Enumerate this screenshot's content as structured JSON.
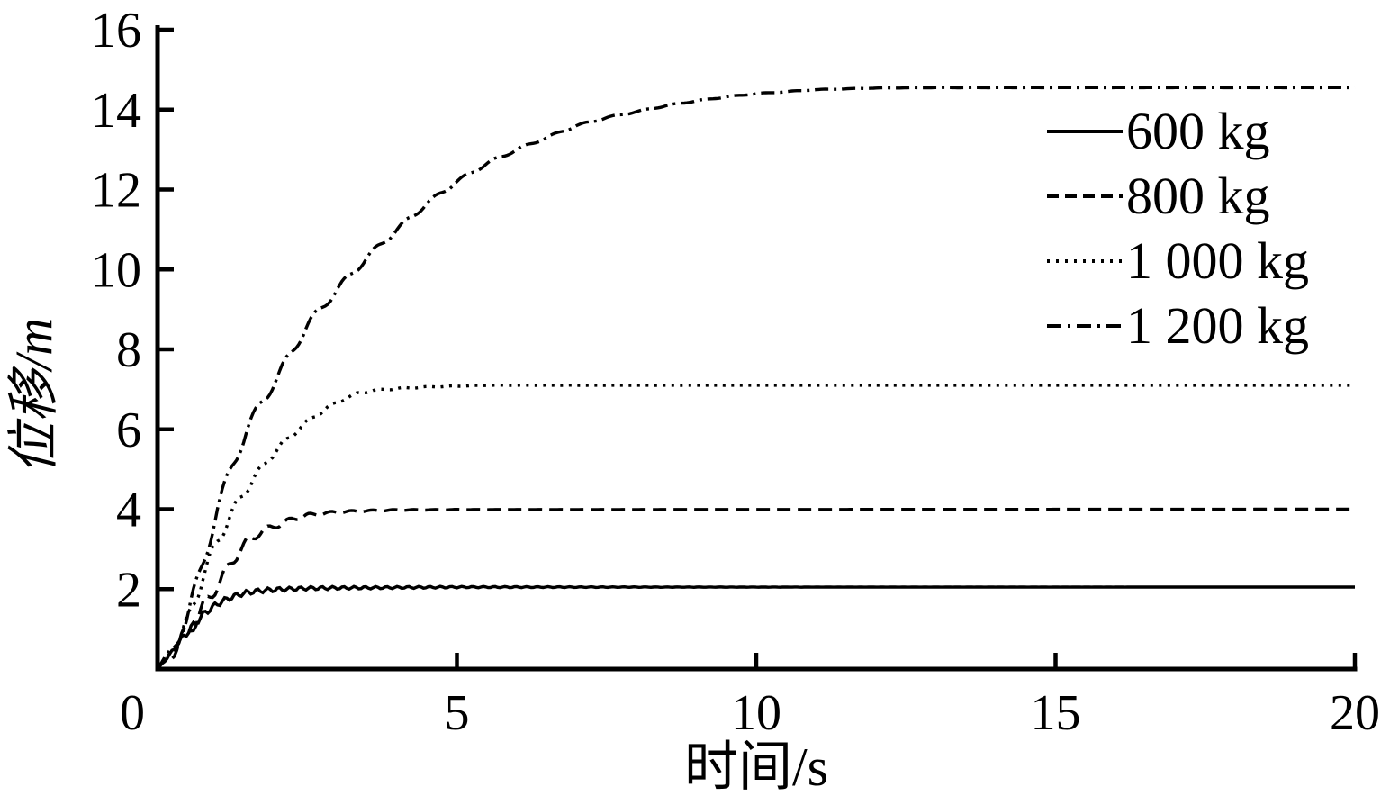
{
  "figure": {
    "background": "#ffffff",
    "ink_color": "#000000"
  },
  "chart_data": {
    "type": "line",
    "title": "",
    "xlabel": "时间/s",
    "ylabel": "位移/m",
    "xlim": [
      0,
      20
    ],
    "ylim": [
      0,
      16
    ],
    "x_ticks": [
      0,
      5,
      10,
      15,
      20
    ],
    "y_ticks": [
      2,
      4,
      6,
      8,
      10,
      12,
      14,
      16
    ],
    "grid": false,
    "legend_position": "upper-right",
    "series": [
      {
        "name": "600 kg",
        "style": "solid",
        "color": "#000000",
        "plateau": 2.05,
        "points": [
          [
            0,
            0
          ],
          [
            0.2,
            0.35
          ],
          [
            0.4,
            0.75
          ],
          [
            0.6,
            1.1
          ],
          [
            0.8,
            1.42
          ],
          [
            1,
            1.63
          ],
          [
            1.2,
            1.78
          ],
          [
            1.4,
            1.88
          ],
          [
            1.6,
            1.94
          ],
          [
            1.8,
            1.97
          ],
          [
            2,
            1.99
          ],
          [
            2.5,
            2.02
          ],
          [
            3,
            2.03
          ],
          [
            4,
            2.04
          ],
          [
            5,
            2.05
          ],
          [
            20,
            2.05
          ]
        ],
        "ripple": {
          "amplitude": 0.1,
          "period": 0.18,
          "decay": 3.0
        }
      },
      {
        "name": "800 kg",
        "style": "dashed",
        "color": "#000000",
        "plateau": 4.0,
        "points": [
          [
            0,
            0
          ],
          [
            0.25,
            0.4
          ],
          [
            0.5,
            0.95
          ],
          [
            0.75,
            1.5
          ],
          [
            1,
            2.1
          ],
          [
            1.25,
            2.7
          ],
          [
            1.5,
            3.2
          ],
          [
            1.75,
            3.45
          ],
          [
            2,
            3.6
          ],
          [
            2.25,
            3.75
          ],
          [
            2.5,
            3.85
          ],
          [
            3,
            3.93
          ],
          [
            3.5,
            3.96
          ],
          [
            4,
            3.98
          ],
          [
            5,
            3.99
          ],
          [
            20,
            4.0
          ]
        ],
        "ripple": {
          "amplitude": 0.35,
          "period": 0.35,
          "decay": 1.2
        }
      },
      {
        "name": "1 000 kg",
        "style": "dotted",
        "color": "#000000",
        "plateau": 7.1,
        "points": [
          [
            0,
            0
          ],
          [
            0.25,
            0.45
          ],
          [
            0.5,
            1.15
          ],
          [
            0.75,
            2.3
          ],
          [
            1,
            3.2
          ],
          [
            1.35,
            4.2
          ],
          [
            1.6,
            4.75
          ],
          [
            1.85,
            5.25
          ],
          [
            2.1,
            5.65
          ],
          [
            2.35,
            6.0
          ],
          [
            2.6,
            6.3
          ],
          [
            2.85,
            6.55
          ],
          [
            3.1,
            6.75
          ],
          [
            3.35,
            6.9
          ],
          [
            3.6,
            6.97
          ],
          [
            4,
            7.02
          ],
          [
            4.5,
            7.06
          ],
          [
            5,
            7.08
          ],
          [
            5.5,
            7.1
          ],
          [
            20,
            7.1
          ]
        ],
        "ripple": {
          "amplitude": 0.3,
          "period": 0.4,
          "decay": 1.4
        }
      },
      {
        "name": "1 200 kg",
        "style": "dashdot",
        "color": "#000000",
        "plateau": 14.55,
        "points": [
          [
            0,
            0
          ],
          [
            0.25,
            0.5
          ],
          [
            0.5,
            1.3
          ],
          [
            0.75,
            2.6
          ],
          [
            1,
            4.0
          ],
          [
            1.25,
            5.1
          ],
          [
            1.5,
            6.0
          ],
          [
            1.75,
            6.7
          ],
          [
            2,
            7.3
          ],
          [
            2.25,
            7.95
          ],
          [
            2.5,
            8.6
          ],
          [
            2.75,
            9.05
          ],
          [
            3,
            9.5
          ],
          [
            3.5,
            10.3
          ],
          [
            4,
            11.0
          ],
          [
            4.5,
            11.65
          ],
          [
            5,
            12.2
          ],
          [
            5.5,
            12.65
          ],
          [
            6,
            13.0
          ],
          [
            6.5,
            13.3
          ],
          [
            7,
            13.6
          ],
          [
            7.5,
            13.8
          ],
          [
            8,
            13.95
          ],
          [
            8.5,
            14.1
          ],
          [
            9,
            14.22
          ],
          [
            9.5,
            14.32
          ],
          [
            10,
            14.4
          ],
          [
            10.5,
            14.45
          ],
          [
            11,
            14.5
          ],
          [
            11.5,
            14.52
          ],
          [
            12,
            14.54
          ],
          [
            13,
            14.55
          ],
          [
            20,
            14.55
          ]
        ],
        "ripple": {
          "amplitude": 0.25,
          "period": 0.5,
          "decay": 3.0
        }
      }
    ]
  }
}
